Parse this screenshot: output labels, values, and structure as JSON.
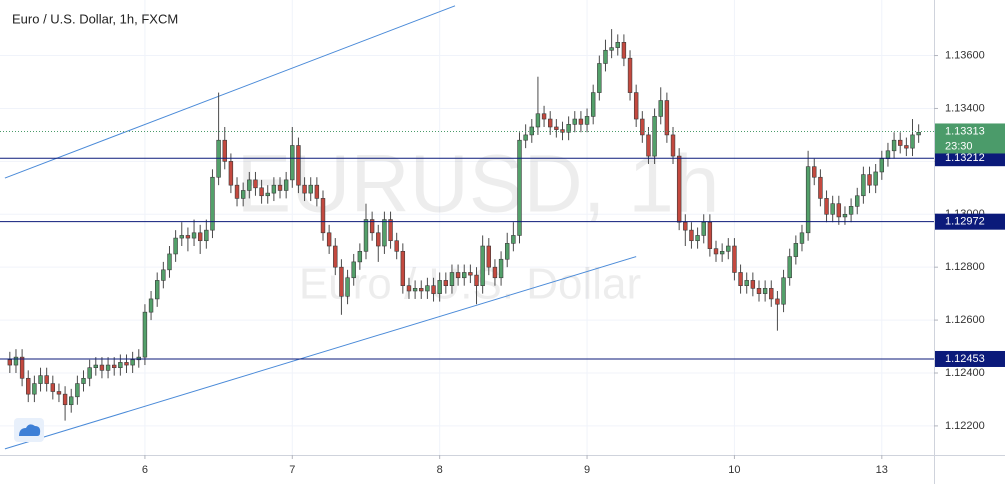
{
  "chart_data": {
    "type": "candlestick",
    "title": "Euro / U.S. Dollar, 1h, FXCM",
    "watermark": "EURUSD, 1h",
    "watermark_subtitle": "Euro / U.S. Dollar",
    "up_color": "#53a06a",
    "down_color": "#c4493f",
    "xlim": [
      -1.6,
      150.5
    ],
    "ylim": [
      1.1209,
      1.1381
    ],
    "xticks": [
      {
        "value": 22,
        "label": "6"
      },
      {
        "value": 46,
        "label": "7"
      },
      {
        "value": 70,
        "label": "8"
      },
      {
        "value": 94,
        "label": "9"
      },
      {
        "value": 118,
        "label": "10"
      },
      {
        "value": 142,
        "label": "13"
      }
    ],
    "yticks": [
      {
        "value": 1.122,
        "label": "1.12200"
      },
      {
        "value": 1.124,
        "label": "1.12400"
      },
      {
        "value": 1.126,
        "label": "1.12600"
      },
      {
        "value": 1.128,
        "label": "1.12800"
      },
      {
        "value": 1.13,
        "label": "1.13000"
      },
      {
        "value": 1.132,
        "label": "1.13200"
      },
      {
        "value": 1.134,
        "label": "1.13400"
      },
      {
        "value": 1.136,
        "label": "1.13600"
      }
    ],
    "grid": true,
    "levels": [
      {
        "value": 1.13212,
        "label": "1.13212"
      },
      {
        "value": 1.12972,
        "label": "1.12972"
      },
      {
        "value": 1.12453,
        "label": "1.12453"
      }
    ],
    "last_price": {
      "value": 1.13313,
      "label": "1.13313",
      "countdown": "23:30"
    },
    "trendlines": [
      {
        "x": [
          -0.8,
          72.5
        ],
        "y": [
          1.13137,
          1.13788
        ]
      },
      {
        "x": [
          -0.8,
          102
        ],
        "y": [
          1.12113,
          1.1284
        ]
      }
    ],
    "ohlc": [
      [
        1.1245,
        1.1248,
        1.124,
        1.1243
      ],
      [
        1.1243,
        1.1249,
        1.124,
        1.1246
      ],
      [
        1.1246,
        1.1249,
        1.1235,
        1.1238
      ],
      [
        1.1238,
        1.1241,
        1.1229,
        1.1232
      ],
      [
        1.1232,
        1.1239,
        1.1229,
        1.1236
      ],
      [
        1.1236,
        1.1242,
        1.1233,
        1.1239
      ],
      [
        1.1239,
        1.1242,
        1.1233,
        1.1236
      ],
      [
        1.1236,
        1.1239,
        1.123,
        1.1233
      ],
      [
        1.1233,
        1.1236,
        1.1229,
        1.1232
      ],
      [
        1.1232,
        1.1235,
        1.1222,
        1.1228
      ],
      [
        1.1228,
        1.1234,
        1.1225,
        1.1231
      ],
      [
        1.1231,
        1.1239,
        1.1228,
        1.1236
      ],
      [
        1.1236,
        1.1241,
        1.1233,
        1.1238
      ],
      [
        1.1238,
        1.1245,
        1.1235,
        1.1242
      ],
      [
        1.1242,
        1.1246,
        1.1239,
        1.1243
      ],
      [
        1.1243,
        1.1246,
        1.1238,
        1.1241
      ],
      [
        1.1241,
        1.1246,
        1.1238,
        1.1243
      ],
      [
        1.1243,
        1.1246,
        1.1239,
        1.1242
      ],
      [
        1.1242,
        1.1247,
        1.1239,
        1.1244
      ],
      [
        1.1244,
        1.1247,
        1.124,
        1.1243
      ],
      [
        1.1243,
        1.1248,
        1.124,
        1.1245
      ],
      [
        1.1245,
        1.1249,
        1.1242,
        1.1246
      ],
      [
        1.1246,
        1.1266,
        1.1243,
        1.1263
      ],
      [
        1.1263,
        1.1271,
        1.126,
        1.1268
      ],
      [
        1.1268,
        1.1278,
        1.1265,
        1.1275
      ],
      [
        1.1275,
        1.1282,
        1.1272,
        1.1279
      ],
      [
        1.1279,
        1.1288,
        1.1276,
        1.1285
      ],
      [
        1.1285,
        1.1294,
        1.1282,
        1.1291
      ],
      [
        1.1291,
        1.1297,
        1.1288,
        1.1292
      ],
      [
        1.1292,
        1.1295,
        1.1286,
        1.1291
      ],
      [
        1.1291,
        1.1298,
        1.1288,
        1.1293
      ],
      [
        1.1293,
        1.1296,
        1.1285,
        1.129
      ],
      [
        1.129,
        1.1298,
        1.1287,
        1.1294
      ],
      [
        1.1294,
        1.1317,
        1.1291,
        1.1314
      ],
      [
        1.1314,
        1.1346,
        1.1311,
        1.1328
      ],
      [
        1.1328,
        1.1333,
        1.1317,
        1.132
      ],
      [
        1.132,
        1.1323,
        1.1308,
        1.1311
      ],
      [
        1.1311,
        1.1314,
        1.1303,
        1.1306
      ],
      [
        1.1306,
        1.1312,
        1.1303,
        1.1309
      ],
      [
        1.1309,
        1.1316,
        1.1306,
        1.1313
      ],
      [
        1.1313,
        1.1316,
        1.1307,
        1.131
      ],
      [
        1.131,
        1.1313,
        1.1304,
        1.1307
      ],
      [
        1.1307,
        1.1311,
        1.1304,
        1.1308
      ],
      [
        1.1308,
        1.1314,
        1.1305,
        1.1311
      ],
      [
        1.1311,
        1.1314,
        1.1306,
        1.1309
      ],
      [
        1.1309,
        1.1316,
        1.1306,
        1.1313
      ],
      [
        1.1313,
        1.1333,
        1.131,
        1.1326
      ],
      [
        1.1326,
        1.1329,
        1.1308,
        1.1311
      ],
      [
        1.1311,
        1.1314,
        1.1305,
        1.1308
      ],
      [
        1.1308,
        1.1314,
        1.1305,
        1.1311
      ],
      [
        1.1311,
        1.1314,
        1.1303,
        1.1306
      ],
      [
        1.1306,
        1.1309,
        1.129,
        1.1293
      ],
      [
        1.1293,
        1.1296,
        1.1285,
        1.1288
      ],
      [
        1.1288,
        1.1291,
        1.1277,
        1.128
      ],
      [
        1.128,
        1.1283,
        1.1262,
        1.1269
      ],
      [
        1.1269,
        1.1279,
        1.1266,
        1.1276
      ],
      [
        1.1276,
        1.1285,
        1.1273,
        1.1282
      ],
      [
        1.1282,
        1.1289,
        1.1279,
        1.1286
      ],
      [
        1.1286,
        1.1304,
        1.1283,
        1.1298
      ],
      [
        1.1298,
        1.1301,
        1.129,
        1.1293
      ],
      [
        1.1293,
        1.1296,
        1.1282,
        1.1288
      ],
      [
        1.1288,
        1.1301,
        1.1285,
        1.1298
      ],
      [
        1.1298,
        1.1301,
        1.1287,
        1.129
      ],
      [
        1.129,
        1.1293,
        1.1283,
        1.1286
      ],
      [
        1.1286,
        1.1289,
        1.127,
        1.1273
      ],
      [
        1.1273,
        1.1276,
        1.1268,
        1.1271
      ],
      [
        1.1271,
        1.1275,
        1.1268,
        1.1272
      ],
      [
        1.1272,
        1.1275,
        1.1268,
        1.1271
      ],
      [
        1.1271,
        1.1276,
        1.1268,
        1.1273
      ],
      [
        1.1273,
        1.1276,
        1.1267,
        1.127
      ],
      [
        1.127,
        1.1278,
        1.1267,
        1.1275
      ],
      [
        1.1275,
        1.1278,
        1.127,
        1.1273
      ],
      [
        1.1273,
        1.1281,
        1.127,
        1.1278
      ],
      [
        1.1278,
        1.1281,
        1.1273,
        1.1276
      ],
      [
        1.1276,
        1.1281,
        1.1273,
        1.1278
      ],
      [
        1.1278,
        1.1281,
        1.1274,
        1.1277
      ],
      [
        1.1277,
        1.128,
        1.1266,
        1.1273
      ],
      [
        1.1273,
        1.1292,
        1.127,
        1.1288
      ],
      [
        1.1288,
        1.1291,
        1.1277,
        1.128
      ],
      [
        1.128,
        1.1283,
        1.1273,
        1.1276
      ],
      [
        1.1276,
        1.1286,
        1.1273,
        1.1283
      ],
      [
        1.1283,
        1.1293,
        1.128,
        1.1289
      ],
      [
        1.1289,
        1.1297,
        1.1286,
        1.1292
      ],
      [
        1.1292,
        1.1331,
        1.1289,
        1.1328
      ],
      [
        1.1328,
        1.1334,
        1.1325,
        1.133
      ],
      [
        1.133,
        1.1336,
        1.1327,
        1.1333
      ],
      [
        1.1333,
        1.1352,
        1.133,
        1.1338
      ],
      [
        1.1338,
        1.1341,
        1.1333,
        1.1336
      ],
      [
        1.1336,
        1.1339,
        1.133,
        1.1333
      ],
      [
        1.1333,
        1.1336,
        1.1329,
        1.1332
      ],
      [
        1.1332,
        1.1335,
        1.1328,
        1.1331
      ],
      [
        1.1331,
        1.1337,
        1.1328,
        1.1334
      ],
      [
        1.1334,
        1.1339,
        1.1331,
        1.1336
      ],
      [
        1.1336,
        1.1339,
        1.1331,
        1.1334
      ],
      [
        1.1334,
        1.134,
        1.1331,
        1.1337
      ],
      [
        1.1337,
        1.1349,
        1.1334,
        1.1346
      ],
      [
        1.1346,
        1.136,
        1.1343,
        1.1357
      ],
      [
        1.1357,
        1.1366,
        1.1354,
        1.1362
      ],
      [
        1.1362,
        1.137,
        1.1359,
        1.1363
      ],
      [
        1.1363,
        1.1368,
        1.136,
        1.1365
      ],
      [
        1.1365,
        1.1368,
        1.1356,
        1.1359
      ],
      [
        1.1359,
        1.1362,
        1.1343,
        1.1346
      ],
      [
        1.1346,
        1.1349,
        1.1333,
        1.1336
      ],
      [
        1.1336,
        1.1339,
        1.1327,
        1.133
      ],
      [
        1.133,
        1.1333,
        1.1319,
        1.1322
      ],
      [
        1.1322,
        1.134,
        1.1319,
        1.1337
      ],
      [
        1.1337,
        1.1348,
        1.1334,
        1.1343
      ],
      [
        1.1343,
        1.1346,
        1.1327,
        1.133
      ],
      [
        1.133,
        1.1333,
        1.1319,
        1.1322
      ],
      [
        1.1322,
        1.1325,
        1.1294,
        1.1297
      ],
      [
        1.1297,
        1.13,
        1.1288,
        1.1294
      ],
      [
        1.1294,
        1.1297,
        1.1287,
        1.129
      ],
      [
        1.129,
        1.1295,
        1.1287,
        1.1292
      ],
      [
        1.1292,
        1.13,
        1.1289,
        1.1297
      ],
      [
        1.1297,
        1.13,
        1.1284,
        1.1287
      ],
      [
        1.1287,
        1.129,
        1.1282,
        1.1285
      ],
      [
        1.1285,
        1.1289,
        1.1282,
        1.1286
      ],
      [
        1.1286,
        1.1291,
        1.1283,
        1.1288
      ],
      [
        1.1288,
        1.1291,
        1.1275,
        1.1278
      ],
      [
        1.1278,
        1.1281,
        1.127,
        1.1273
      ],
      [
        1.1273,
        1.1278,
        1.127,
        1.1275
      ],
      [
        1.1275,
        1.1278,
        1.1269,
        1.1272
      ],
      [
        1.1272,
        1.1275,
        1.1267,
        1.127
      ],
      [
        1.127,
        1.1275,
        1.1267,
        1.1272
      ],
      [
        1.1272,
        1.1275,
        1.1265,
        1.1268
      ],
      [
        1.1268,
        1.1271,
        1.1256,
        1.1266
      ],
      [
        1.1266,
        1.1279,
        1.1263,
        1.1276
      ],
      [
        1.1276,
        1.1287,
        1.1273,
        1.1284
      ],
      [
        1.1284,
        1.1292,
        1.1281,
        1.1289
      ],
      [
        1.1289,
        1.1296,
        1.1286,
        1.1293
      ],
      [
        1.1293,
        1.1324,
        1.129,
        1.1318
      ],
      [
        1.1318,
        1.1321,
        1.1311,
        1.1314
      ],
      [
        1.1314,
        1.1317,
        1.1303,
        1.1306
      ],
      [
        1.1306,
        1.1309,
        1.1297,
        1.13
      ],
      [
        1.13,
        1.1307,
        1.1297,
        1.1304
      ],
      [
        1.1304,
        1.1307,
        1.1296,
        1.1299
      ],
      [
        1.1299,
        1.1303,
        1.1296,
        1.13
      ],
      [
        1.13,
        1.1306,
        1.1297,
        1.1303
      ],
      [
        1.1303,
        1.131,
        1.13,
        1.1307
      ],
      [
        1.1307,
        1.1318,
        1.1304,
        1.1315
      ],
      [
        1.1315,
        1.1318,
        1.1308,
        1.1311
      ],
      [
        1.1311,
        1.1319,
        1.1308,
        1.1316
      ],
      [
        1.1316,
        1.1324,
        1.1313,
        1.1321
      ],
      [
        1.1321,
        1.1327,
        1.1318,
        1.1324
      ],
      [
        1.1324,
        1.1331,
        1.1321,
        1.1328
      ],
      [
        1.1328,
        1.1331,
        1.1323,
        1.1326
      ],
      [
        1.1326,
        1.1329,
        1.1322,
        1.1325
      ],
      [
        1.1325,
        1.1336,
        1.1322,
        1.133
      ],
      [
        1.133,
        1.1334,
        1.1327,
        1.1331
      ]
    ]
  }
}
